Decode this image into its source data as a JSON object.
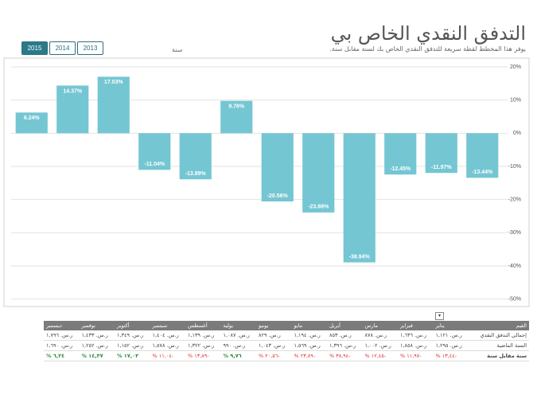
{
  "header": {
    "title": "التدفق النقدي الخاص بي",
    "subtitle": "يوفر هذا المخطط لقطة سريعة للتدفق النقدي الخاص بك لسنة مقابل سنة."
  },
  "slicer": {
    "title": "سنة",
    "years": [
      "2013",
      "2014",
      "2015"
    ],
    "selected": "2015"
  },
  "chart_data": {
    "type": "bar",
    "color": "#74c6d2",
    "values": [
      6.24,
      14.37,
      17.03,
      -11.04,
      -13.89,
      9.76,
      -20.56,
      -23.89,
      -38.94,
      -12.45,
      -11.97,
      -13.44
    ],
    "value_labels": [
      "6.24%",
      "14.37%",
      "17.03%",
      "-11.04%",
      "-13.89%",
      "9.76%",
      "-20.56%",
      "-23.89%",
      "-38.94%",
      "-12.45%",
      "-11.97%",
      "-13.44%"
    ],
    "ylim": [
      -52,
      22.4
    ],
    "yticks": [
      {
        "value": 20,
        "label": "20%"
      },
      {
        "value": 10,
        "label": "10%"
      },
      {
        "value": 0,
        "label": "0%"
      },
      {
        "value": -10,
        "label": "-10%"
      },
      {
        "value": -20,
        "label": "-20%"
      },
      {
        "value": -30,
        "label": "-30%"
      },
      {
        "value": -40,
        "label": "-40%"
      },
      {
        "value": -50,
        "label": "-50%"
      }
    ],
    "grid": true
  },
  "table": {
    "header": [
      "القيم",
      "يناير",
      "فبراير",
      "مارس",
      "أبريل",
      "مايو",
      "يونيو",
      "يوليه",
      "أغسطس",
      "سبتمبر",
      "أكتوبر",
      "نوفمبر",
      "ديسمبر"
    ],
    "rows": [
      [
        "إجمالي التدفق النقدي",
        "ر.س. ١,١٢١",
        "ر.س. ١,٦٣٦",
        "ر.س. ٨٧٨",
        "ر.س. ٨٥٣",
        "ر.س. ١,١٩٤",
        "ر.س. ٨٢٩",
        "ر.س. ١,٠٨٧",
        "ر.س. ١,١٣٩",
        "ر.س. ١,٤٠٤",
        "ر.س. ١,٣٤٩",
        "ر.س. ١,٤٣٣",
        "ر.س. ١,٧٩٦"
      ],
      [
        "السنة الماضية",
        "ر.س. ١,٢٩٥",
        "ر.س. ١,٨٥٨",
        "ر.س. ١,٠٠٢",
        "ر.س. ١,٣٩٦",
        "ر.س. ١,٥٦٩",
        "ر.س. ١,٠٤٣",
        "ر.س. ٩٩٠",
        "ر.س. ١,٣٢٢",
        "ر.س. ١,٥٧٨",
        "ر.س. ١,١٥٢",
        "ر.س. ١,٢٥٢",
        "ر.س. ١,٦٩٠"
      ],
      [
        "سنة مقابل سنة",
        "-١٣,٤٤ %",
        "-١١,٩٧ %",
        "-١٢,٤٥ %",
        "-٣٨,٩٤ %",
        "-٢٣,٨٩ %",
        "-٢٠,٥٦ %",
        "٩,٧٦ %",
        "-١٣,٨٩ %",
        "-١١,٠٤ %",
        "١٧,٠٣ %",
        "١٤,٣٧ %",
        "٦,٢٤ %"
      ]
    ]
  }
}
